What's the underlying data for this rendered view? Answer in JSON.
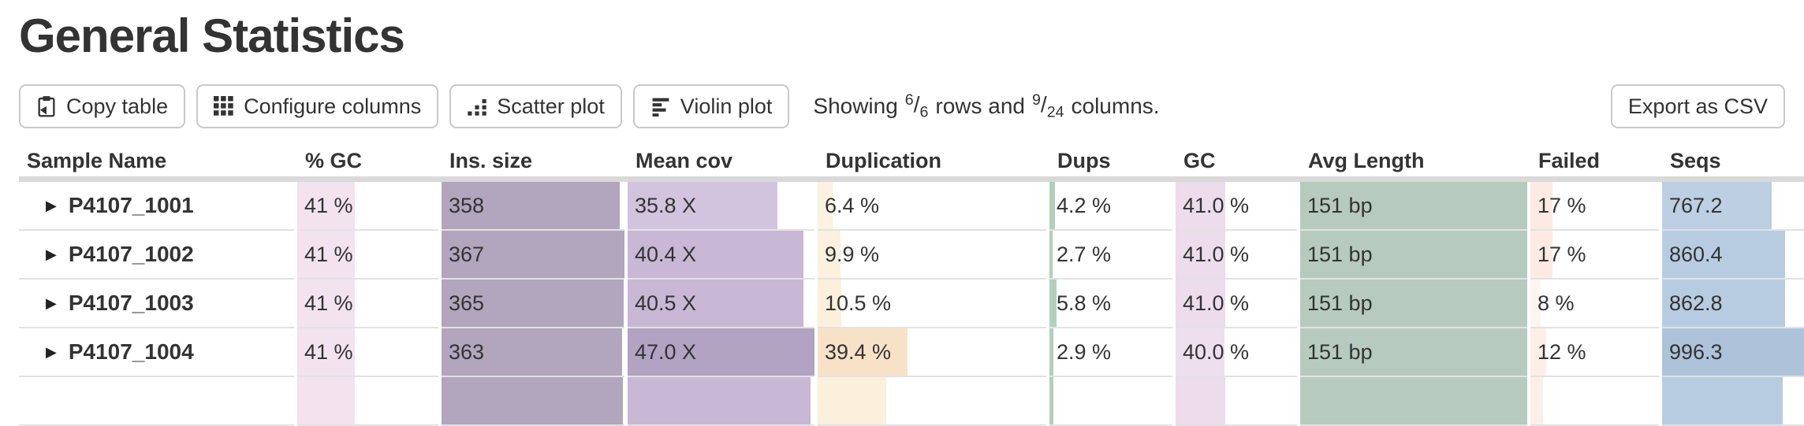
{
  "page": {
    "title": "General Statistics"
  },
  "toolbar": {
    "copy_button": "Copy table",
    "configure_button": "Configure columns",
    "scatter_button": "Scatter plot",
    "violin_button": "Violin plot",
    "export_button": "Export as CSV",
    "showing": {
      "prefix": "Showing",
      "rows_shown": "6",
      "rows_total": "6",
      "slash": "/",
      "middle": "rows and",
      "cols_shown": "9",
      "cols_total": "24",
      "suffix": "columns."
    }
  },
  "icons": {
    "copy": "clipboard-icon",
    "configure": "grid-icon",
    "scatter": "scatter-plot-icon",
    "violin": "violin-plot-icon",
    "expand": "expand-triangle-icon"
  },
  "table": {
    "columns": [
      {
        "label": "Sample Name"
      },
      {
        "label": "% GC"
      },
      {
        "label": "Ins. size"
      },
      {
        "label": "Mean cov"
      },
      {
        "label": "Duplication"
      },
      {
        "label": "Dups"
      },
      {
        "label": "GC"
      },
      {
        "label": "Avg Length"
      },
      {
        "label": "Failed"
      },
      {
        "label": "Seqs"
      }
    ],
    "rows": [
      {
        "sample": "P4107_1001",
        "cells": [
          {
            "text": "41 %",
            "bar_pct": 41,
            "bar_color": "#f2e3ef"
          },
          {
            "text": "358",
            "bar_pct": 97.5,
            "bar_color": "#b1a6bd"
          },
          {
            "text": "35.8 X",
            "bar_pct": 80,
            "bar_color": "#d2c3de"
          },
          {
            "text": "6.4 %",
            "bar_pct": 6.4,
            "bar_color": "#fbf2e2"
          },
          {
            "text": "4.2 %",
            "bar_pct": 4.2,
            "bar_color": "#b2cfba"
          },
          {
            "text": "41.0 %",
            "bar_pct": 41,
            "bar_color": "#ecdcec"
          },
          {
            "text": "151 bp",
            "bar_pct": 100,
            "bar_color": "#b6cbbd"
          },
          {
            "text": "17 %",
            "bar_pct": 17,
            "bar_color": "#fdebe3"
          },
          {
            "text": "767.2",
            "bar_pct": 77,
            "bar_color": "#bccfe3"
          }
        ]
      },
      {
        "sample": "P4107_1002",
        "cells": [
          {
            "text": "41 %",
            "bar_pct": 41,
            "bar_color": "#f2e3ef"
          },
          {
            "text": "367",
            "bar_pct": 100,
            "bar_color": "#b1a6bd"
          },
          {
            "text": "40.4 X",
            "bar_pct": 94,
            "bar_color": "#c9b7d6"
          },
          {
            "text": "9.9 %",
            "bar_pct": 9.9,
            "bar_color": "#fbf1de"
          },
          {
            "text": "2.7 %",
            "bar_pct": 2.7,
            "bar_color": "#b2cfba"
          },
          {
            "text": "41.0 %",
            "bar_pct": 41,
            "bar_color": "#ecdcec"
          },
          {
            "text": "151 bp",
            "bar_pct": 100,
            "bar_color": "#b6cbbd"
          },
          {
            "text": "17 %",
            "bar_pct": 17,
            "bar_color": "#fdebe3"
          },
          {
            "text": "860.4",
            "bar_pct": 86.4,
            "bar_color": "#b8cce1"
          }
        ]
      },
      {
        "sample": "P4107_1003",
        "cells": [
          {
            "text": "41 %",
            "bar_pct": 41,
            "bar_color": "#f2e3ef"
          },
          {
            "text": "365",
            "bar_pct": 99.5,
            "bar_color": "#b1a6bd"
          },
          {
            "text": "40.5 X",
            "bar_pct": 94,
            "bar_color": "#c9b7d6"
          },
          {
            "text": "10.5 %",
            "bar_pct": 10.5,
            "bar_color": "#fbf0db"
          },
          {
            "text": "5.8 %",
            "bar_pct": 5.8,
            "bar_color": "#b2cfba"
          },
          {
            "text": "41.0 %",
            "bar_pct": 41,
            "bar_color": "#ecdcec"
          },
          {
            "text": "151 bp",
            "bar_pct": 100,
            "bar_color": "#b6cbbd"
          },
          {
            "text": "8 %",
            "bar_pct": 8,
            "bar_color": "#fef5f1"
          },
          {
            "text": "862.8",
            "bar_pct": 86.6,
            "bar_color": "#b8cce1"
          }
        ]
      },
      {
        "sample": "P4107_1004",
        "cells": [
          {
            "text": "41 %",
            "bar_pct": 41,
            "bar_color": "#f2e3ef"
          },
          {
            "text": "363",
            "bar_pct": 98.9,
            "bar_color": "#b1a6bd"
          },
          {
            "text": "47.0 X",
            "bar_pct": 100,
            "bar_color": "#b1a3c1"
          },
          {
            "text": "39.4 %",
            "bar_pct": 39.4,
            "bar_color": "#f8e2c7"
          },
          {
            "text": "2.9 %",
            "bar_pct": 2.9,
            "bar_color": "#b2cfba"
          },
          {
            "text": "40.0 %",
            "bar_pct": 40,
            "bar_color": "#eedfee"
          },
          {
            "text": "151 bp",
            "bar_pct": 100,
            "bar_color": "#b6cbbd"
          },
          {
            "text": "12 %",
            "bar_pct": 12,
            "bar_color": "#fdefe8"
          },
          {
            "text": "996.3",
            "bar_pct": 100,
            "bar_color": "#aec3d9"
          }
        ]
      },
      {
        "sample": "",
        "cells": [
          {
            "text": "",
            "bar_pct": 41,
            "bar_color": "#f2e3ef"
          },
          {
            "text": "",
            "bar_pct": 99,
            "bar_color": "#b1a6bd"
          },
          {
            "text": "",
            "bar_pct": 98,
            "bar_color": "#c9b7d6"
          },
          {
            "text": "",
            "bar_pct": 30,
            "bar_color": "#fbf0db"
          },
          {
            "text": "",
            "bar_pct": 3,
            "bar_color": "#b2cfba"
          },
          {
            "text": "",
            "bar_pct": 41,
            "bar_color": "#ecdcec"
          },
          {
            "text": "",
            "bar_pct": 100,
            "bar_color": "#b6cbbd"
          },
          {
            "text": "",
            "bar_pct": 10,
            "bar_color": "#fdefe8"
          },
          {
            "text": "",
            "bar_pct": 85,
            "bar_color": "#b8cce1"
          }
        ]
      }
    ]
  }
}
